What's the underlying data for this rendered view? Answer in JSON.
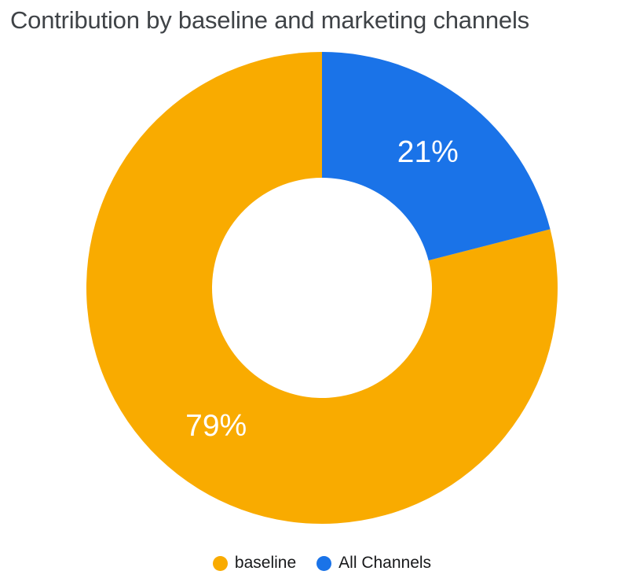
{
  "chart_data": {
    "type": "pie",
    "subtype": "donut",
    "title": "Contribution by baseline and marketing channels",
    "series": [
      {
        "name": "baseline",
        "value": 79,
        "label": "79%",
        "color": "#F9AB00"
      },
      {
        "name": "All Channels",
        "value": 21,
        "label": "21%",
        "color": "#1A73E8"
      }
    ],
    "start_angle_deg": 75.6,
    "direction": "clockwise",
    "inner_radius_ratio": 0.467,
    "label_color": "#FFFFFF",
    "legend_position": "bottom",
    "background_color": "#FFFFFF",
    "title_color": "#3F4347"
  }
}
